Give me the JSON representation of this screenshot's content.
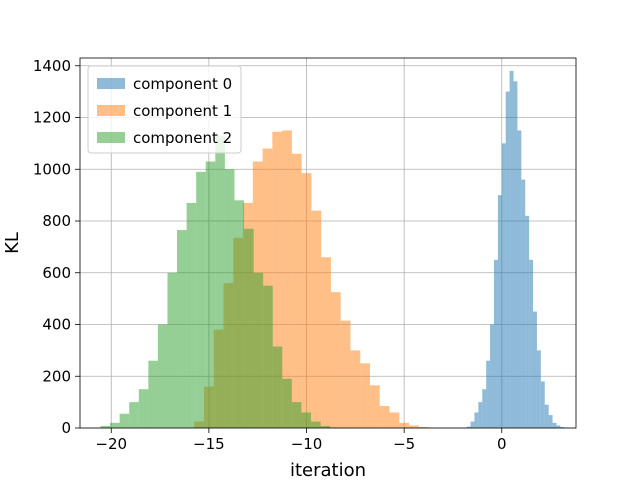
{
  "chart_data": {
    "type": "histogram",
    "title": "",
    "xlabel": "iteration",
    "ylabel": "KL",
    "xlim": [
      -21.6,
      3.8
    ],
    "ylim": [
      0,
      1430
    ],
    "x_ticks": [
      -20,
      -15,
      -10,
      -5,
      0
    ],
    "x_tick_labels": [
      "−20",
      "−15",
      "−10",
      "−5",
      "0"
    ],
    "y_ticks": [
      0,
      200,
      400,
      600,
      800,
      1000,
      1200,
      1400
    ],
    "y_tick_labels": [
      "0",
      "200",
      "400",
      "600",
      "800",
      "1000",
      "1200",
      "1400"
    ],
    "grid": true,
    "legend": "upper left",
    "bar_alpha": 0.5,
    "series": [
      {
        "name": "component 0",
        "color": "#1f77b4",
        "bin_start": -1.8,
        "bin_width": 0.2,
        "values": [
          5,
          25,
          60,
          100,
          150,
          260,
          400,
          650,
          900,
          1100,
          1300,
          1380,
          1340,
          1150,
          960,
          820,
          650,
          450,
          300,
          180,
          90,
          50,
          20,
          10,
          4,
          2
        ]
      },
      {
        "name": "component 1",
        "color": "#ff7f0e",
        "bin_start": -15.75,
        "bin_width": 0.5,
        "values": [
          25,
          160,
          380,
          560,
          735,
          870,
          1030,
          1080,
          1145,
          1150,
          1060,
          985,
          840,
          660,
          525,
          415,
          300,
          250,
          165,
          85,
          60,
          20,
          10,
          4,
          1
        ]
      },
      {
        "name": "component 2",
        "color": "#2ca02c",
        "bin_start": -20.55,
        "bin_width": 0.49,
        "values": [
          8,
          20,
          55,
          100,
          150,
          260,
          400,
          600,
          765,
          870,
          990,
          1030,
          1130,
          1000,
          880,
          770,
          600,
          550,
          315,
          190,
          100,
          60,
          25,
          8,
          2
        ]
      }
    ]
  }
}
